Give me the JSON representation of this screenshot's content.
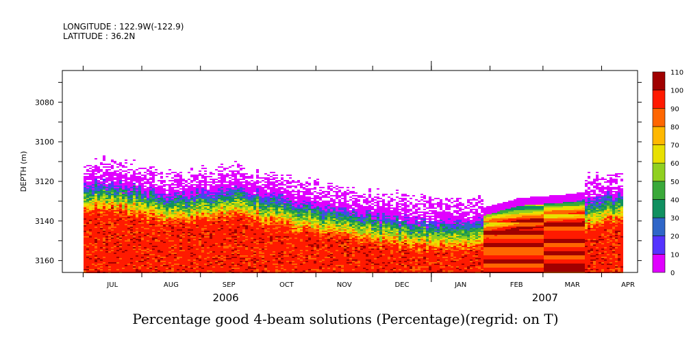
{
  "header": {
    "longitude": "LONGITUDE : 122.9W(-122.9)",
    "latitude": "LATITUDE : 36.2N"
  },
  "chart_data": {
    "type": "heatmap",
    "title": "Percentage good 4-beam solutions (Percentage)(regrid: on T)",
    "ylabel": "DEPTH (m)",
    "xlabel": "",
    "y_axis": {
      "range": [
        3064,
        3166
      ],
      "reversed": true,
      "tick_labels": [
        "3080",
        "3100",
        "3120",
        "3140",
        "3160"
      ],
      "tick_values": [
        3080,
        3100,
        3120,
        3140,
        3160
      ]
    },
    "x_axis": {
      "range": [
        "2006-06-20",
        "2007-04-20"
      ],
      "month_labels": [
        "JUL",
        "AUG",
        "SEP",
        "OCT",
        "NOV",
        "DEC",
        "JAN",
        "FEB",
        "MAR",
        "APR"
      ],
      "year_labels": [
        "2006",
        "2007"
      ]
    },
    "colorbar": {
      "labels": [
        "0",
        "10",
        "20",
        "30",
        "40",
        "50",
        "60",
        "70",
        "80",
        "90",
        "100",
        "110"
      ],
      "colors": [
        "#e000ff",
        "#5533ff",
        "#2f66c8",
        "#109060",
        "#3aa93a",
        "#90d020",
        "#e8e000",
        "#ffb800",
        "#ff6600",
        "#ff1a00",
        "#a00000"
      ]
    },
    "profile": {
      "description_months": [
        "JUL",
        "AUG",
        "SEP",
        "OCT",
        "NOV",
        "DEC",
        "JAN",
        "FEB",
        "MAR",
        "APR"
      ],
      "top_of_good_data_depth_m": [
        3120,
        3126,
        3122,
        3128,
        3134,
        3138,
        3140,
        3132,
        3130,
        3124
      ]
    }
  }
}
